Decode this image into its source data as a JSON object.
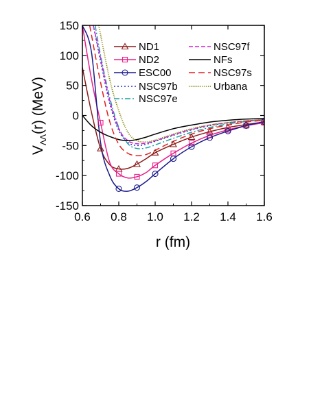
{
  "chart_data": {
    "type": "line",
    "title": "",
    "xlabel": "r (fm)",
    "ylabel_main": "V",
    "ylabel_sub": "ΛΛ",
    "ylabel_tail": "(r) (MeV)",
    "xlim": [
      0.6,
      1.6
    ],
    "ylim": [
      -150,
      150
    ],
    "xticks": [
      "0.6",
      "0.8",
      "1.0",
      "1.2",
      "1.4",
      "1.6"
    ],
    "yticks": [
      "150",
      "100",
      "50",
      "0",
      "-50",
      "-100",
      "-150"
    ],
    "grid": false,
    "legend_placement": "top-right",
    "series": [
      {
        "name": "ND1",
        "color": "#8b1a1a",
        "dash": "solid",
        "marker": "triangle",
        "x": [
          0.6,
          0.65,
          0.7,
          0.75,
          0.8,
          0.85,
          0.9,
          0.95,
          1.0,
          1.1,
          1.2,
          1.3,
          1.4,
          1.5,
          1.6
        ],
        "y": [
          80,
          5,
          -55,
          -82,
          -89,
          -88,
          -81,
          -72,
          -62,
          -48,
          -36,
          -27,
          -20,
          -15,
          -11
        ],
        "marker_x": [
          0.7,
          0.8,
          0.9,
          1.0,
          1.1,
          1.2,
          1.3,
          1.4,
          1.5,
          1.6
        ],
        "marker_y": [
          -55,
          -89,
          -81,
          -62,
          -48,
          -36,
          -27,
          -20,
          -15,
          -11
        ]
      },
      {
        "name": "ND2",
        "color": "#e8208a",
        "dash": "solid",
        "marker": "square",
        "x": [
          0.6,
          0.65,
          0.7,
          0.75,
          0.8,
          0.85,
          0.9,
          0.95,
          1.0,
          1.1,
          1.2,
          1.3,
          1.4,
          1.5,
          1.6
        ],
        "y": [
          150,
          60,
          -12,
          -78,
          -97,
          -104,
          -102,
          -95,
          -83,
          -63,
          -46,
          -33,
          -24,
          -17,
          -12
        ],
        "marker_x": [
          0.7,
          0.8,
          0.9,
          1.0,
          1.1,
          1.2,
          1.3,
          1.4,
          1.5,
          1.6
        ],
        "marker_y": [
          -12,
          -97,
          -102,
          -83,
          -63,
          -46,
          -33,
          -24,
          -17,
          -12
        ]
      },
      {
        "name": "ESC00",
        "color": "#1a1a8c",
        "dash": "solid",
        "marker": "circle",
        "x": [
          0.6,
          0.65,
          0.7,
          0.75,
          0.8,
          0.85,
          0.9,
          0.95,
          1.0,
          1.1,
          1.2,
          1.3,
          1.4,
          1.5,
          1.6
        ],
        "y": [
          150,
          105,
          -45,
          -100,
          -122,
          -126,
          -120,
          -110,
          -97,
          -72,
          -52,
          -37,
          -26,
          -17,
          -10
        ],
        "marker_x": [
          0.8,
          0.9,
          1.0,
          1.1,
          1.2,
          1.3,
          1.4,
          1.5,
          1.6
        ],
        "marker_y": [
          -122,
          -120,
          -97,
          -72,
          -52,
          -37,
          -26,
          -17,
          -10
        ]
      },
      {
        "name": "NSC97b",
        "color": "#2030d0",
        "dash": "dot",
        "marker": "none",
        "x": [
          0.66,
          0.7,
          0.75,
          0.8,
          0.85,
          0.9,
          0.95,
          1.0,
          1.1,
          1.2,
          1.3,
          1.4,
          1.5,
          1.6
        ],
        "y": [
          150,
          90,
          20,
          -25,
          -45,
          -50,
          -48,
          -43,
          -33,
          -24,
          -17,
          -12,
          -9,
          -7
        ]
      },
      {
        "name": "NSC97e",
        "color": "#1ca0a0",
        "dash": "dashdot",
        "marker": "none",
        "x": [
          0.67,
          0.7,
          0.75,
          0.8,
          0.85,
          0.9,
          0.95,
          1.0,
          1.1,
          1.2,
          1.3,
          1.4,
          1.5,
          1.6
        ],
        "y": [
          150,
          100,
          30,
          -20,
          -47,
          -55,
          -54,
          -49,
          -38,
          -28,
          -20,
          -14,
          -10,
          -7
        ]
      },
      {
        "name": "NSC97f",
        "color": "#d020d0",
        "dash": "dash",
        "marker": "none",
        "x": [
          0.66,
          0.7,
          0.75,
          0.8,
          0.85,
          0.9,
          0.95,
          1.0,
          1.1,
          1.2,
          1.3,
          1.4,
          1.5,
          1.6
        ],
        "y": [
          150,
          95,
          25,
          -22,
          -42,
          -47,
          -46,
          -42,
          -32,
          -23,
          -16,
          -12,
          -9,
          -7
        ]
      },
      {
        "name": "NFs",
        "color": "#000000",
        "dash": "solid",
        "marker": "none",
        "x": [
          0.6,
          0.65,
          0.7,
          0.75,
          0.8,
          0.85,
          0.9,
          0.95,
          1.0,
          1.1,
          1.2,
          1.3,
          1.4,
          1.5,
          1.6
        ],
        "y": [
          0,
          -17,
          -28,
          -35,
          -40,
          -42,
          -40,
          -36,
          -31,
          -22,
          -16,
          -11,
          -8,
          -6,
          -5
        ]
      },
      {
        "name": "NSC97s",
        "color": "#e02020",
        "dash": "longdash",
        "marker": "none",
        "x": [
          0.64,
          0.7,
          0.75,
          0.8,
          0.85,
          0.9,
          0.95,
          1.0,
          1.1,
          1.2,
          1.3,
          1.4,
          1.5,
          1.6
        ],
        "y": [
          150,
          55,
          -10,
          -48,
          -63,
          -67,
          -65,
          -58,
          -43,
          -31,
          -22,
          -16,
          -11,
          -8
        ]
      },
      {
        "name": "Urbana",
        "color": "#8a8a10",
        "dash": "finedot",
        "marker": "none",
        "x": [
          0.69,
          0.75,
          0.8,
          0.85,
          0.9,
          0.95,
          1.0,
          1.1,
          1.2,
          1.3,
          1.4,
          1.5,
          1.6
        ],
        "y": [
          150,
          60,
          8,
          -28,
          -42,
          -44,
          -41,
          -31,
          -22,
          -16,
          -12,
          -9,
          -7
        ]
      }
    ]
  }
}
